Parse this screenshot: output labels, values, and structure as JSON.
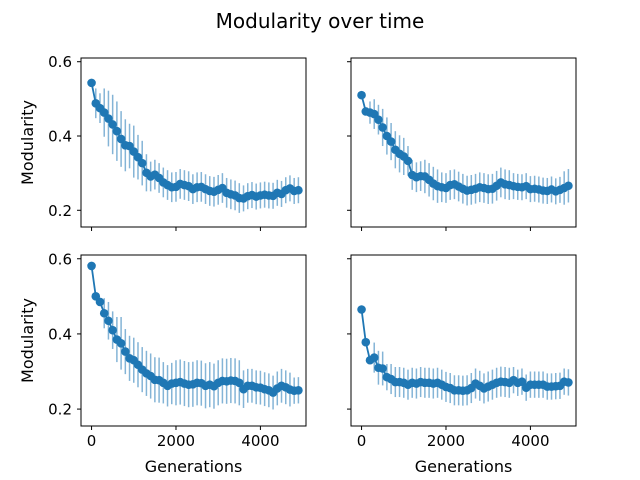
{
  "figure": {
    "title": "Modularity over time"
  },
  "colors": {
    "series": "#1f77b4",
    "errorbar": "#1f77b4",
    "axes": "#000000",
    "background": "#ffffff"
  },
  "chart_data": [
    {
      "type": "line",
      "panel": "top-left",
      "xlabel": "",
      "ylabel": "Modularity",
      "xlim": [
        -250,
        5080
      ],
      "ylim": [
        0.155,
        0.61
      ],
      "xticks": [
        0,
        2000,
        4000
      ],
      "xtick_labels": [
        "",
        "",
        ""
      ],
      "yticks": [
        0.2,
        0.4,
        0.6
      ],
      "ytick_labels": [
        "0.2",
        "0.4",
        "0.6"
      ],
      "x": [
        0,
        100,
        200,
        300,
        400,
        500,
        600,
        700,
        800,
        900,
        1000,
        1100,
        1200,
        1300,
        1400,
        1500,
        1600,
        1700,
        1800,
        1900,
        2000,
        2100,
        2200,
        2300,
        2400,
        2500,
        2600,
        2700,
        2800,
        2900,
        3000,
        3100,
        3200,
        3300,
        3400,
        3500,
        3600,
        3700,
        3800,
        3900,
        4000,
        4100,
        4200,
        4300,
        4400,
        4500,
        4600,
        4700,
        4800,
        4900
      ],
      "y": [
        0.543,
        0.488,
        0.475,
        0.463,
        0.447,
        0.431,
        0.413,
        0.392,
        0.375,
        0.373,
        0.358,
        0.343,
        0.327,
        0.301,
        0.291,
        0.296,
        0.287,
        0.275,
        0.268,
        0.262,
        0.263,
        0.271,
        0.268,
        0.265,
        0.257,
        0.262,
        0.263,
        0.257,
        0.252,
        0.25,
        0.255,
        0.26,
        0.247,
        0.243,
        0.24,
        0.233,
        0.232,
        0.238,
        0.241,
        0.237,
        0.24,
        0.242,
        0.24,
        0.239,
        0.247,
        0.244,
        0.254,
        0.259,
        0.252,
        0.254
      ],
      "yerr": [
        0.0,
        0.04,
        0.04,
        0.065,
        0.075,
        0.08,
        0.08,
        0.075,
        0.07,
        0.06,
        0.07,
        0.06,
        0.06,
        0.05,
        0.04,
        0.04,
        0.04,
        0.04,
        0.04,
        0.04,
        0.04,
        0.04,
        0.04,
        0.04,
        0.04,
        0.04,
        0.04,
        0.04,
        0.04,
        0.04,
        0.04,
        0.04,
        0.04,
        0.04,
        0.04,
        0.04,
        0.035,
        0.035,
        0.035,
        0.035,
        0.035,
        0.035,
        0.035,
        0.035,
        0.035,
        0.035,
        0.035,
        0.035,
        0.035,
        0.035
      ]
    },
    {
      "type": "line",
      "panel": "top-right",
      "xlabel": "",
      "ylabel": "",
      "xlim": [
        -250,
        5080
      ],
      "ylim": [
        0.155,
        0.61
      ],
      "xticks": [
        0,
        2000,
        4000
      ],
      "xtick_labels": [
        "",
        "",
        ""
      ],
      "yticks": [
        0.2,
        0.4,
        0.6
      ],
      "ytick_labels": [
        "",
        "",
        ""
      ],
      "x": [
        0,
        100,
        200,
        300,
        400,
        500,
        600,
        700,
        800,
        900,
        1000,
        1100,
        1200,
        1300,
        1400,
        1500,
        1600,
        1700,
        1800,
        1900,
        2000,
        2100,
        2200,
        2300,
        2400,
        2500,
        2600,
        2700,
        2800,
        2900,
        3000,
        3100,
        3200,
        3300,
        3400,
        3500,
        3600,
        3700,
        3800,
        3900,
        4000,
        4100,
        4200,
        4300,
        4400,
        4500,
        4600,
        4700,
        4800,
        4900
      ],
      "y": [
        0.51,
        0.466,
        0.463,
        0.459,
        0.444,
        0.423,
        0.4,
        0.385,
        0.363,
        0.352,
        0.345,
        0.333,
        0.295,
        0.289,
        0.292,
        0.291,
        0.282,
        0.272,
        0.265,
        0.262,
        0.26,
        0.268,
        0.27,
        0.264,
        0.258,
        0.253,
        0.255,
        0.258,
        0.262,
        0.26,
        0.257,
        0.258,
        0.266,
        0.275,
        0.27,
        0.268,
        0.265,
        0.263,
        0.262,
        0.265,
        0.257,
        0.258,
        0.256,
        0.253,
        0.252,
        0.256,
        0.251,
        0.255,
        0.26,
        0.266
      ],
      "yerr": [
        0.0,
        0.0,
        0.03,
        0.04,
        0.04,
        0.05,
        0.05,
        0.05,
        0.05,
        0.05,
        0.05,
        0.04,
        0.04,
        0.04,
        0.04,
        0.045,
        0.045,
        0.045,
        0.045,
        0.04,
        0.04,
        0.04,
        0.04,
        0.04,
        0.04,
        0.04,
        0.04,
        0.04,
        0.04,
        0.04,
        0.04,
        0.04,
        0.04,
        0.04,
        0.04,
        0.04,
        0.035,
        0.035,
        0.035,
        0.035,
        0.035,
        0.035,
        0.035,
        0.035,
        0.035,
        0.035,
        0.035,
        0.035,
        0.045,
        0.045
      ]
    },
    {
      "type": "line",
      "panel": "bottom-left",
      "xlabel": "Generations",
      "ylabel": "Modularity",
      "xlim": [
        -250,
        5080
      ],
      "ylim": [
        0.155,
        0.61
      ],
      "xticks": [
        0,
        2000,
        4000
      ],
      "xtick_labels": [
        "0",
        "2000",
        "4000"
      ],
      "yticks": [
        0.2,
        0.4,
        0.6
      ],
      "ytick_labels": [
        "0.2",
        "0.4",
        "0.6"
      ],
      "x": [
        0,
        100,
        200,
        300,
        400,
        500,
        600,
        700,
        800,
        900,
        1000,
        1100,
        1200,
        1300,
        1400,
        1500,
        1600,
        1700,
        1800,
        1900,
        2000,
        2100,
        2200,
        2300,
        2400,
        2500,
        2600,
        2700,
        2800,
        2900,
        3000,
        3100,
        3200,
        3300,
        3400,
        3500,
        3600,
        3700,
        3800,
        3900,
        4000,
        4100,
        4200,
        4300,
        4400,
        4500,
        4600,
        4700,
        4800,
        4900
      ],
      "y": [
        0.581,
        0.5,
        0.485,
        0.455,
        0.435,
        0.41,
        0.385,
        0.375,
        0.353,
        0.335,
        0.33,
        0.318,
        0.305,
        0.295,
        0.288,
        0.278,
        0.277,
        0.27,
        0.262,
        0.268,
        0.27,
        0.272,
        0.268,
        0.265,
        0.266,
        0.27,
        0.269,
        0.262,
        0.265,
        0.261,
        0.27,
        0.275,
        0.274,
        0.276,
        0.275,
        0.27,
        0.253,
        0.262,
        0.262,
        0.258,
        0.257,
        0.253,
        0.25,
        0.244,
        0.255,
        0.262,
        0.258,
        0.252,
        0.249,
        0.25
      ],
      "yerr": [
        0.0,
        0.0,
        0.0,
        0.04,
        0.05,
        0.05,
        0.06,
        0.07,
        0.06,
        0.06,
        0.06,
        0.06,
        0.06,
        0.06,
        0.06,
        0.06,
        0.06,
        0.055,
        0.055,
        0.055,
        0.06,
        0.06,
        0.06,
        0.06,
        0.06,
        0.06,
        0.06,
        0.06,
        0.06,
        0.06,
        0.06,
        0.06,
        0.06,
        0.06,
        0.06,
        0.06,
        0.05,
        0.045,
        0.045,
        0.045,
        0.045,
        0.045,
        0.045,
        0.045,
        0.045,
        0.045,
        0.045,
        0.045,
        0.035,
        0.035
      ]
    },
    {
      "type": "line",
      "panel": "bottom-right",
      "xlabel": "Generations",
      "ylabel": "",
      "xlim": [
        -250,
        5080
      ],
      "ylim": [
        0.155,
        0.61
      ],
      "xticks": [
        0,
        2000,
        4000
      ],
      "xtick_labels": [
        "0",
        "2000",
        "4000"
      ],
      "yticks": [
        0.2,
        0.4,
        0.6
      ],
      "ytick_labels": [
        "",
        "",
        ""
      ],
      "x": [
        0,
        100,
        200,
        300,
        400,
        500,
        600,
        700,
        800,
        900,
        1000,
        1100,
        1200,
        1300,
        1400,
        1500,
        1600,
        1700,
        1800,
        1900,
        2000,
        2100,
        2200,
        2300,
        2400,
        2500,
        2600,
        2700,
        2800,
        2900,
        3000,
        3100,
        3200,
        3300,
        3400,
        3500,
        3600,
        3700,
        3800,
        3900,
        4000,
        4100,
        4200,
        4300,
        4400,
        4500,
        4600,
        4700,
        4800,
        4900
      ],
      "y": [
        0.465,
        0.378,
        0.33,
        0.337,
        0.31,
        0.308,
        0.285,
        0.28,
        0.272,
        0.272,
        0.27,
        0.265,
        0.27,
        0.268,
        0.272,
        0.27,
        0.27,
        0.268,
        0.27,
        0.265,
        0.259,
        0.256,
        0.25,
        0.25,
        0.249,
        0.25,
        0.256,
        0.268,
        0.262,
        0.255,
        0.26,
        0.265,
        0.27,
        0.273,
        0.272,
        0.27,
        0.277,
        0.27,
        0.273,
        0.257,
        0.265,
        0.265,
        0.265,
        0.265,
        0.26,
        0.26,
        0.261,
        0.262,
        0.273,
        0.271
      ],
      "yerr": [
        0.0,
        0.0,
        0.0,
        0.04,
        0.045,
        0.045,
        0.035,
        0.04,
        0.04,
        0.04,
        0.04,
        0.04,
        0.04,
        0.04,
        0.04,
        0.04,
        0.04,
        0.04,
        0.04,
        0.04,
        0.04,
        0.04,
        0.04,
        0.04,
        0.04,
        0.04,
        0.04,
        0.04,
        0.04,
        0.04,
        0.04,
        0.04,
        0.04,
        0.04,
        0.04,
        0.04,
        0.035,
        0.035,
        0.035,
        0.035,
        0.035,
        0.035,
        0.035,
        0.035,
        0.035,
        0.035,
        0.035,
        0.035,
        0.035,
        0.035
      ]
    }
  ]
}
